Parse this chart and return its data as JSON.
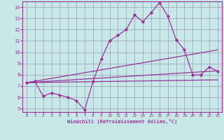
{
  "xlabel": "Windchill (Refroidissement éolien,°C)",
  "bg_color": "#c8e8e8",
  "line_color": "#993399",
  "grid_color": "#9999bb",
  "spine_color": "#993399",
  "xlim": [
    -0.5,
    23.5
  ],
  "ylim": [
    4.7,
    14.5
  ],
  "xticks": [
    0,
    1,
    2,
    3,
    4,
    5,
    6,
    7,
    8,
    9,
    10,
    11,
    12,
    13,
    14,
    15,
    16,
    17,
    18,
    19,
    20,
    21,
    22,
    23
  ],
  "yticks": [
    5,
    6,
    7,
    8,
    9,
    10,
    11,
    12,
    13,
    14
  ],
  "line1_x": [
    0,
    1,
    2,
    3,
    4,
    5,
    6,
    7,
    8,
    9,
    10,
    11,
    12,
    13,
    14,
    15,
    16,
    17,
    18,
    19,
    20,
    21,
    22,
    23
  ],
  "line1_y": [
    7.3,
    7.4,
    6.1,
    6.4,
    6.2,
    6.0,
    5.7,
    4.9,
    7.4,
    9.4,
    11.0,
    11.5,
    12.0,
    13.3,
    12.7,
    13.5,
    14.4,
    13.2,
    11.1,
    10.2,
    8.0,
    8.0,
    8.7,
    8.3
  ],
  "line2_x": [
    0,
    23
  ],
  "line2_y": [
    7.3,
    7.55
  ],
  "line3_x": [
    0,
    23
  ],
  "line3_y": [
    7.3,
    8.35
  ],
  "line4_x": [
    0,
    23
  ],
  "line4_y": [
    7.3,
    10.2
  ]
}
